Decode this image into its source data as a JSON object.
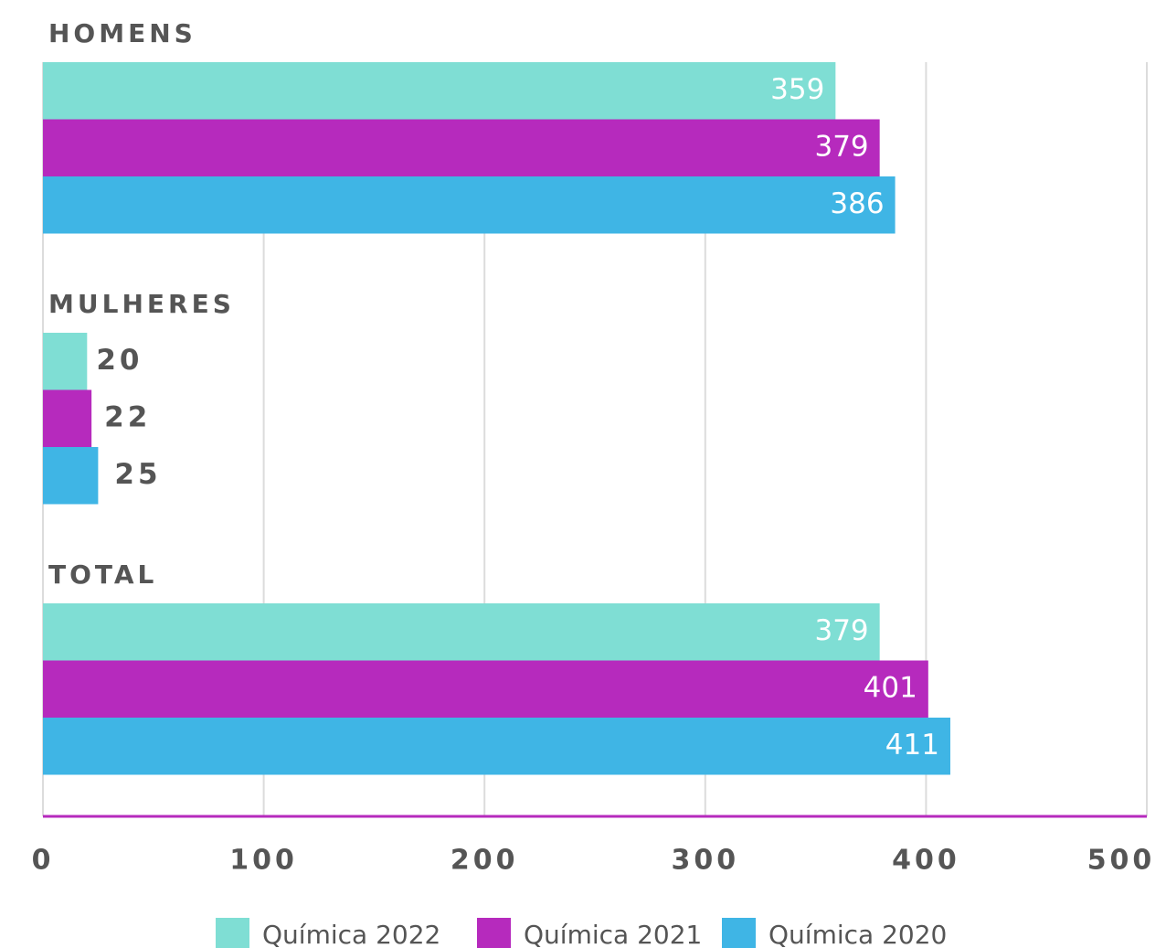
{
  "chart_data": {
    "type": "bar",
    "orientation": "horizontal",
    "categories": [
      "HOMENS",
      "MULHERES",
      "TOTAL"
    ],
    "series": [
      {
        "name": "Química 2022",
        "color": "#7fded4",
        "values": [
          359,
          20,
          379
        ]
      },
      {
        "name": "Química 2021",
        "color": "#b62abd",
        "values": [
          379,
          22,
          401
        ]
      },
      {
        "name": "Química 2020",
        "color": "#3fb5e5",
        "values": [
          386,
          25,
          411
        ]
      }
    ],
    "xlim": [
      0,
      500
    ],
    "xticks": [
      0,
      100,
      200,
      300,
      400,
      500
    ],
    "grid": true,
    "axis_color": "#b62abd",
    "legend": "bottom"
  }
}
